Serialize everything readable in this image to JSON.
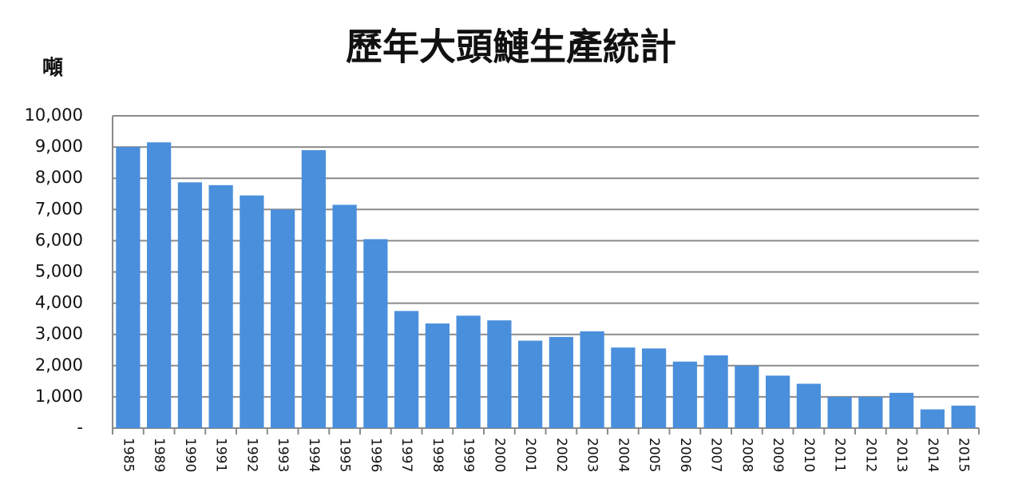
{
  "chart_data": {
    "type": "bar",
    "title": "歷年大頭鰱生產統計",
    "y_label": "噸",
    "categories": [
      "1985",
      "1989",
      "1990",
      "1991",
      "1992",
      "1993",
      "1994",
      "1995",
      "1996",
      "1997",
      "1998",
      "1999",
      "2000",
      "2001",
      "2002",
      "2003",
      "2004",
      "2005",
      "2006",
      "2007",
      "2008",
      "2009",
      "2010",
      "2011",
      "2012",
      "2013",
      "2014",
      "2015"
    ],
    "values": [
      9000,
      9150,
      7870,
      7780,
      7450,
      7000,
      8900,
      7150,
      6050,
      3750,
      3350,
      3600,
      3450,
      2800,
      2920,
      3100,
      2580,
      2550,
      2130,
      2330,
      2000,
      1680,
      1420,
      1000,
      1000,
      1130,
      600,
      720
    ],
    "color": "#4a8fdc",
    "ylim": [
      0,
      10000
    ],
    "yticks": [
      {
        "value": 0,
        "label": "-"
      },
      {
        "value": 1000,
        "label": "1,000"
      },
      {
        "value": 2000,
        "label": "2,000"
      },
      {
        "value": 3000,
        "label": "3,000"
      },
      {
        "value": 4000,
        "label": "4,000"
      },
      {
        "value": 5000,
        "label": "5,000"
      },
      {
        "value": 6000,
        "label": "6,000"
      },
      {
        "value": 7000,
        "label": "7,000"
      },
      {
        "value": 8000,
        "label": "8,000"
      },
      {
        "value": 9000,
        "label": "9,000"
      },
      {
        "value": 10000,
        "label": "10,000"
      }
    ],
    "grid": true
  }
}
